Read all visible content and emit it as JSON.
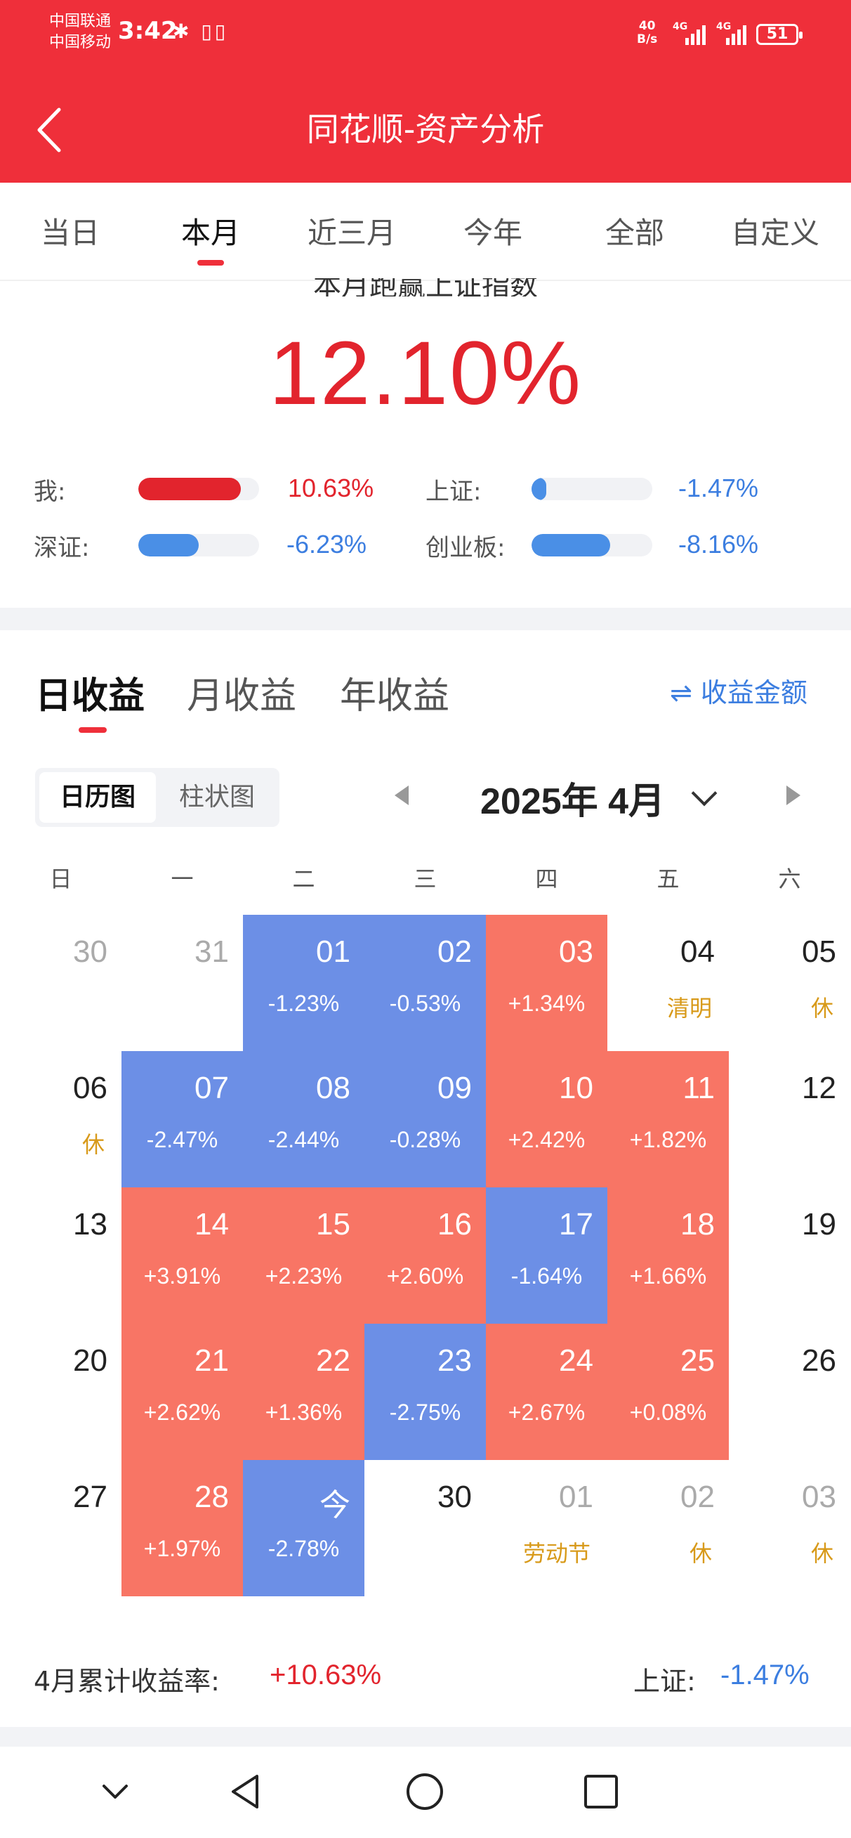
{
  "status": {
    "carrier1": "中国联通",
    "carrier2": "中国移动",
    "time": "3:42",
    "icons": "✱ ▯▯",
    "net_top": "40",
    "net_bottom": "B/s",
    "sig1": "4G",
    "sig2": "4G",
    "battery": "51"
  },
  "header": {
    "title": "同花顺-资产分析",
    "back_icon": "chevron-left-icon"
  },
  "tabs": [
    {
      "label": "当日"
    },
    {
      "label": "本月"
    },
    {
      "label": "近三月"
    },
    {
      "label": "今年"
    },
    {
      "label": "全部"
    },
    {
      "label": "自定义"
    }
  ],
  "summary": {
    "caption": "本月跑赢上证指数",
    "value": "12.10%",
    "rows": [
      {
        "label": "我:",
        "value": "10.63%",
        "fill": 0.85,
        "color": "#e2242d"
      },
      {
        "label": "上证:",
        "value": "-1.47%",
        "fill": 0.12,
        "color": "#4a8fe6"
      },
      {
        "label": "深证:",
        "value": "-6.23%",
        "fill": 0.5,
        "color": "#4a8fe6"
      },
      {
        "label": "创业板:",
        "value": "-8.16%",
        "fill": 0.65,
        "color": "#4a8fe6"
      }
    ]
  },
  "income_tabs": [
    {
      "label": "日收益"
    },
    {
      "label": "月收益"
    },
    {
      "label": "年收益"
    }
  ],
  "amount_link": "⇌ 收益金额",
  "view_toggle": [
    {
      "label": "日历图"
    },
    {
      "label": "柱状图"
    }
  ],
  "month": "2025年 4月",
  "weekdays": [
    "日",
    "一",
    "二",
    "三",
    "四",
    "五",
    "六"
  ],
  "calendar": [
    [
      {
        "d": "30",
        "t": "muted"
      },
      {
        "d": "31",
        "t": "muted"
      },
      {
        "d": "01",
        "t": "down",
        "p": "-1.23%"
      },
      {
        "d": "02",
        "t": "down",
        "p": "-0.53%"
      },
      {
        "d": "03",
        "t": "up",
        "p": "+1.34%"
      },
      {
        "d": "04",
        "t": "plain",
        "h": "清明"
      },
      {
        "d": "05",
        "t": "plain",
        "h": "休"
      }
    ],
    [
      {
        "d": "06",
        "t": "plain",
        "h": "休"
      },
      {
        "d": "07",
        "t": "down",
        "p": "-2.47%"
      },
      {
        "d": "08",
        "t": "down",
        "p": "-2.44%"
      },
      {
        "d": "09",
        "t": "down",
        "p": "-0.28%"
      },
      {
        "d": "10",
        "t": "up",
        "p": "+2.42%"
      },
      {
        "d": "11",
        "t": "up",
        "p": "+1.82%"
      },
      {
        "d": "12",
        "t": "plain"
      }
    ],
    [
      {
        "d": "13",
        "t": "plain"
      },
      {
        "d": "14",
        "t": "up",
        "p": "+3.91%"
      },
      {
        "d": "15",
        "t": "up",
        "p": "+2.23%"
      },
      {
        "d": "16",
        "t": "up",
        "p": "+2.60%"
      },
      {
        "d": "17",
        "t": "down",
        "p": "-1.64%"
      },
      {
        "d": "18",
        "t": "up",
        "p": "+1.66%"
      },
      {
        "d": "19",
        "t": "plain"
      }
    ],
    [
      {
        "d": "20",
        "t": "plain"
      },
      {
        "d": "21",
        "t": "up",
        "p": "+2.62%"
      },
      {
        "d": "22",
        "t": "up",
        "p": "+1.36%"
      },
      {
        "d": "23",
        "t": "down",
        "p": "-2.75%"
      },
      {
        "d": "24",
        "t": "up",
        "p": "+2.67%"
      },
      {
        "d": "25",
        "t": "up",
        "p": "+0.08%"
      },
      {
        "d": "26",
        "t": "plain"
      }
    ],
    [
      {
        "d": "27",
        "t": "plain"
      },
      {
        "d": "28",
        "t": "up",
        "p": "+1.97%"
      },
      {
        "d": "今",
        "t": "down",
        "p": "-2.78%"
      },
      {
        "d": "30",
        "t": "plain"
      },
      {
        "d": "01",
        "t": "muted",
        "h": "劳动节"
      },
      {
        "d": "02",
        "t": "muted",
        "h": "休"
      },
      {
        "d": "03",
        "t": "muted",
        "h": "休"
      }
    ]
  ],
  "footer": {
    "cum_label": "4月累计收益率:",
    "cum_value": "+10.63%",
    "sh_label": "上证:",
    "sh_value": "-1.47%"
  },
  "navbar": [
    "chevron-down-icon",
    "back-triangle-icon",
    "home-circle-icon",
    "recent-square-icon"
  ]
}
